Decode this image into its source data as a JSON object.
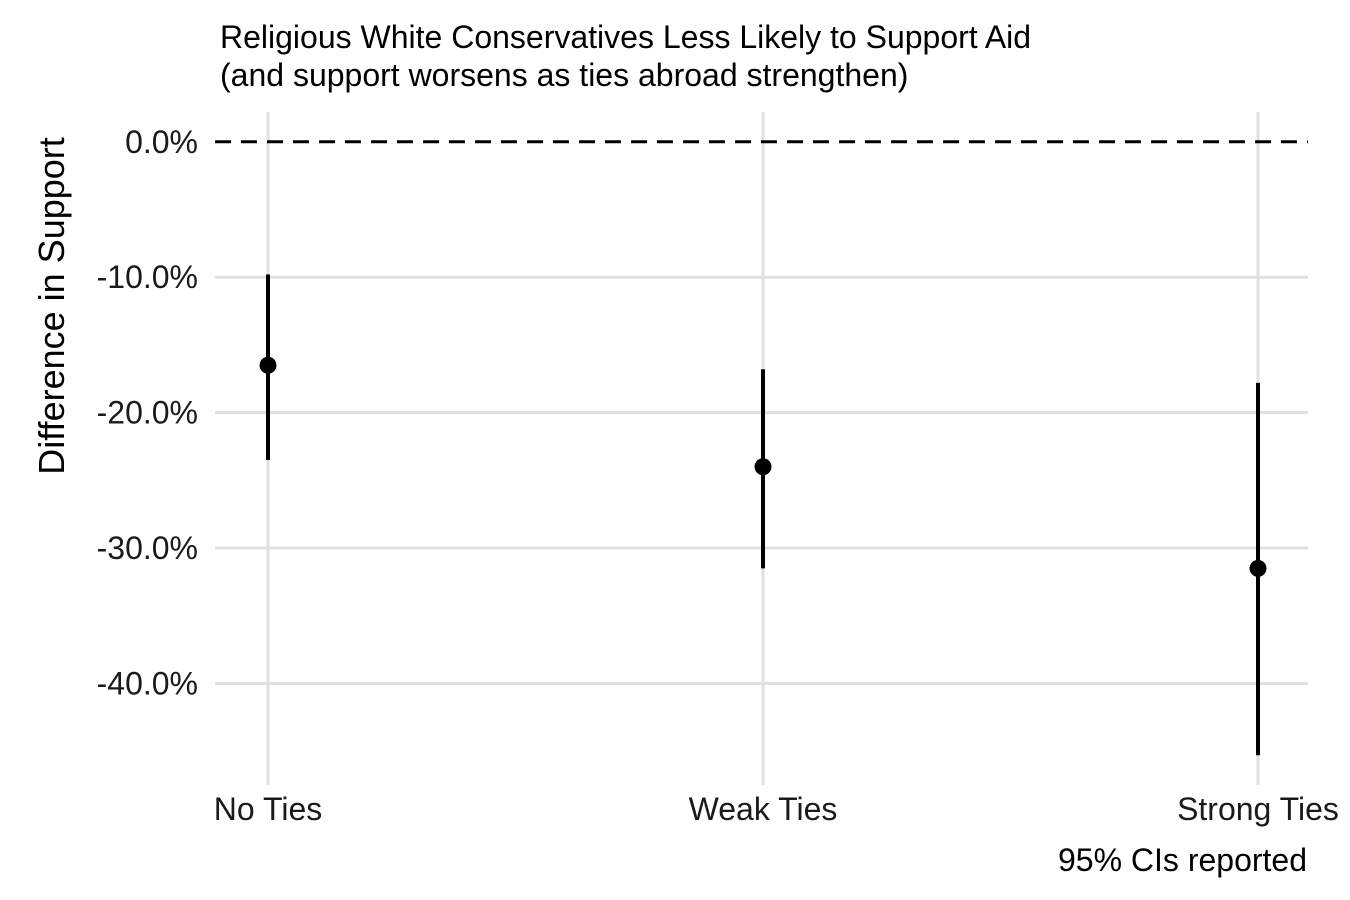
{
  "chart_data": {
    "type": "scatter",
    "title": "Religious White Conservatives Less Likely to Support Aid",
    "subtitle": "(and support worsens as ties abroad strengthen)",
    "xlabel": "",
    "ylabel": "Difference in Support",
    "caption": "95% CIs reported",
    "categories": [
      "No Ties",
      "Weak Ties",
      "Strong Ties"
    ],
    "estimates": [
      -16.5,
      -24.0,
      -31.5
    ],
    "ci_lower": [
      -23.5,
      -31.5,
      -45.3
    ],
    "ci_upper": [
      -9.8,
      -16.8,
      -17.8
    ],
    "reference_line": 0.0,
    "y_ticks": [
      0.0,
      -10.0,
      -20.0,
      -30.0,
      -40.0
    ],
    "y_tick_labels": [
      "0.0%",
      "-10.0%",
      "-20.0%",
      "-30.0%",
      "-40.0%"
    ],
    "ylim": [
      -47.5,
      2.2
    ],
    "grid": true,
    "legend": "none"
  }
}
